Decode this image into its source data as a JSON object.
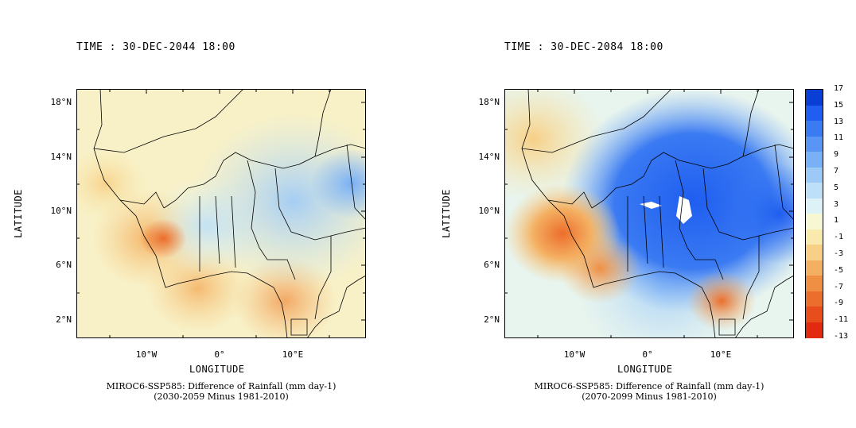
{
  "panels": [
    {
      "time_label": "TIME : 30-DEC-2044 18:00",
      "xlabel": "LONGITUDE",
      "ylabel": "LATITUDE",
      "caption_line1": "MIROC6-SSP585: Difference of Rainfall (mm day-1)",
      "caption_line2": "(2030-2059 Minus 1981-2010)",
      "lat_ticks": [
        "18°N",
        "14°N",
        "10°N",
        "6°N",
        "2°N"
      ],
      "lon_ticks": [
        "10°W",
        "0°",
        "10°E"
      ]
    },
    {
      "time_label": "TIME : 30-DEC-2084 18:00",
      "xlabel": "LONGITUDE",
      "ylabel": "LATITUDE",
      "caption_line1": "MIROC6-SSP585: Difference of Rainfall (mm day-1)",
      "caption_line2": "(2070-2099 Minus 1981-2010)",
      "lat_ticks": [
        "18°N",
        "14°N",
        "10°N",
        "6°N",
        "2°N"
      ],
      "lon_ticks": [
        "10°W",
        "0°",
        "10°E"
      ]
    }
  ],
  "colorbar": {
    "labels": [
      "17",
      "15",
      "13",
      "11",
      "9",
      "7",
      "5",
      "3",
      "1",
      "-1",
      "-3",
      "-5",
      "-7",
      "-9",
      "-11",
      "-13"
    ],
    "colors": [
      "#0a3fd6",
      "#1f5ef0",
      "#3a7af2",
      "#5895f4",
      "#79b0f6",
      "#9cc9f8",
      "#bde0f8",
      "#dcf2f6",
      "#f8f7d4",
      "#f9e9ad",
      "#f7cf86",
      "#f4b062",
      "#f08f44",
      "#ec6e2c",
      "#e84e1c",
      "#e22a10"
    ]
  }
}
